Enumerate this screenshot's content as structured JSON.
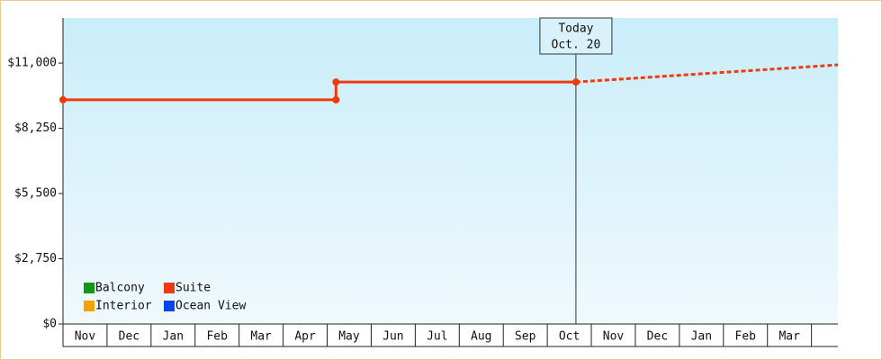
{
  "chart_data": {
    "type": "line",
    "categories": [
      "Nov",
      "Dec",
      "Jan",
      "Feb",
      "Mar",
      "Apr",
      "May",
      "Jun",
      "Jul",
      "Aug",
      "Sep",
      "Oct",
      "Nov",
      "Dec",
      "Jan",
      "Feb",
      "Mar"
    ],
    "xlim": [
      0,
      17.6
    ],
    "ylim": [
      0,
      12900
    ],
    "yticks": [
      {
        "value": 0,
        "label": "$0"
      },
      {
        "value": 2750,
        "label": "$2,750"
      },
      {
        "value": 5500,
        "label": "$5,500"
      },
      {
        "value": 8250,
        "label": "$8,250"
      },
      {
        "value": 11000,
        "label": "$11,000"
      }
    ],
    "series": [
      {
        "name": "Balcony",
        "color": "#119911",
        "x": [],
        "values": []
      },
      {
        "name": "Suite",
        "color": "#ee3a0f",
        "x": [
          0,
          6.2,
          6.2,
          11.65
        ],
        "values": [
          9450,
          9450,
          10200,
          10200
        ],
        "forecast": {
          "x": [
            11.65,
            17.6
          ],
          "values": [
            10200,
            10925
          ]
        }
      },
      {
        "name": "Interior",
        "color": "#f4a20a",
        "x": [],
        "values": []
      },
      {
        "name": "Ocean View",
        "color": "#0a44ee",
        "x": [],
        "values": []
      }
    ],
    "annotation": {
      "lines": [
        "Today",
        "Oct. 20"
      ],
      "x": 11.65
    }
  }
}
